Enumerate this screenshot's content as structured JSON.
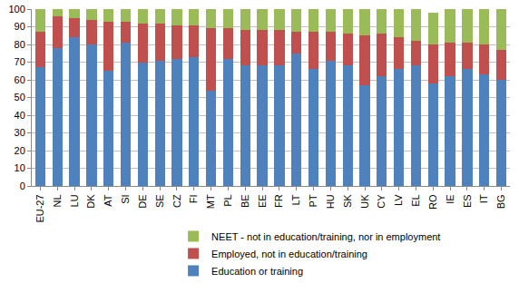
{
  "chart_data": {
    "type": "bar",
    "stacked": true,
    "legend": "bottom",
    "grid": true,
    "categories": [
      "EU-27",
      "NL",
      "LU",
      "DK",
      "AT",
      "SI",
      "DE",
      "SE",
      "CZ",
      "FI",
      "MT",
      "PL",
      "BE",
      "EE",
      "FR",
      "LT",
      "PT",
      "HU",
      "SK",
      "UK",
      "CY",
      "LV",
      "EL",
      "RO",
      "IE",
      "ES",
      "IT",
      "BG"
    ],
    "series": [
      {
        "name": "Education or training",
        "color": "#4f81bd",
        "values": [
          67,
          78,
          84,
          80,
          65,
          81,
          70,
          71,
          72,
          73,
          54,
          72,
          68,
          68,
          68,
          75,
          66,
          71,
          68,
          57,
          62,
          66,
          68,
          58,
          62,
          66,
          63,
          60
        ]
      },
      {
        "name": "Employed, not in education/training",
        "color": "#c0504d",
        "values": [
          20,
          18,
          11,
          14,
          28,
          12,
          22,
          21,
          19,
          18,
          35,
          17,
          20,
          20,
          20,
          12,
          21,
          16,
          18,
          28,
          24,
          18,
          14,
          22,
          19,
          15,
          17,
          17
        ]
      },
      {
        "name": "NEET - not in education/training, nor in employment",
        "color": "#9bbb59",
        "values": [
          13,
          4,
          5,
          6,
          7,
          7,
          8,
          8,
          9,
          9,
          11,
          11,
          12,
          12,
          12,
          13,
          13,
          13,
          14,
          15,
          14,
          16,
          18,
          18,
          19,
          19,
          20,
          23
        ]
      }
    ],
    "ylim": [
      0,
      100
    ],
    "yticks": [
      0,
      10,
      20,
      30,
      40,
      50,
      60,
      70,
      80,
      90,
      100
    ]
  }
}
